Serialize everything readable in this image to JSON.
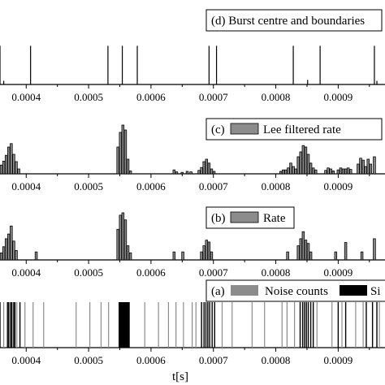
{
  "x_axis": {
    "label": "t[s]",
    "range": [
      0.000358,
      0.000975
    ],
    "ticks": [
      "0.0004",
      "0.0005",
      "0.0006",
      "0.0007",
      "0.0008",
      "0.0009"
    ],
    "tick_values": [
      0.0004,
      0.0005,
      0.0006,
      0.0007,
      0.0008,
      0.0009
    ]
  },
  "panels": [
    {
      "id": "d",
      "legend_label": "(d) Burst centre and boundaries",
      "type": "stem",
      "y_max": 1,
      "points": [
        {
          "t": 0.000358,
          "v": 0.85
        },
        {
          "t": 0.000364,
          "v": 0.08
        },
        {
          "t": 0.000407,
          "v": 0.85
        },
        {
          "t": 0.000531,
          "v": 0.85
        },
        {
          "t": 0.000554,
          "v": 0.85
        },
        {
          "t": 0.000578,
          "v": 0.85
        },
        {
          "t": 0.000693,
          "v": 0.85
        },
        {
          "t": 0.000705,
          "v": 0.85
        },
        {
          "t": 0.000828,
          "v": 0.85
        },
        {
          "t": 0.000851,
          "v": 0.1
        },
        {
          "t": 0.000871,
          "v": 0.85
        },
        {
          "t": 0.000958,
          "v": 0.85
        },
        {
          "t": 0.000962,
          "v": 0.08
        }
      ]
    },
    {
      "id": "c",
      "legend_label": "(c) Lee filtered rate",
      "type": "bar",
      "y_max": 1,
      "bar_width": 3.5e-06,
      "points": [
        {
          "t": 0.00036,
          "v": 0.18
        },
        {
          "t": 0.000364,
          "v": 0.26
        },
        {
          "t": 0.000368,
          "v": 0.38
        },
        {
          "t": 0.000372,
          "v": 0.55
        },
        {
          "t": 0.000376,
          "v": 0.62
        },
        {
          "t": 0.00038,
          "v": 0.4
        },
        {
          "t": 0.000384,
          "v": 0.25
        },
        {
          "t": 0.000388,
          "v": 0.1
        },
        {
          "t": 0.000547,
          "v": 0.55
        },
        {
          "t": 0.000551,
          "v": 0.85
        },
        {
          "t": 0.000555,
          "v": 1.0
        },
        {
          "t": 0.000559,
          "v": 0.9
        },
        {
          "t": 0.000563,
          "v": 0.3
        },
        {
          "t": 0.000567,
          "v": 0.06
        },
        {
          "t": 0.000637,
          "v": 0.08
        },
        {
          "t": 0.000641,
          "v": 0.04
        },
        {
          "t": 0.00065,
          "v": 0.03
        },
        {
          "t": 0.000658,
          "v": 0.05
        },
        {
          "t": 0.000664,
          "v": 0.04
        },
        {
          "t": 0.000677,
          "v": 0.07
        },
        {
          "t": 0.000681,
          "v": 0.13
        },
        {
          "t": 0.000685,
          "v": 0.25
        },
        {
          "t": 0.000689,
          "v": 0.3
        },
        {
          "t": 0.000693,
          "v": 0.22
        },
        {
          "t": 0.000697,
          "v": 0.1
        },
        {
          "t": 0.000701,
          "v": 0.05
        },
        {
          "t": 0.000808,
          "v": 0.05
        },
        {
          "t": 0.000812,
          "v": 0.08
        },
        {
          "t": 0.000816,
          "v": 0.08
        },
        {
          "t": 0.00082,
          "v": 0.12
        },
        {
          "t": 0.000824,
          "v": 0.22
        },
        {
          "t": 0.000828,
          "v": 0.15
        },
        {
          "t": 0.000832,
          "v": 0.1
        },
        {
          "t": 0.000836,
          "v": 0.35
        },
        {
          "t": 0.00084,
          "v": 0.45
        },
        {
          "t": 0.000844,
          "v": 0.58
        },
        {
          "t": 0.000848,
          "v": 0.55
        },
        {
          "t": 0.000852,
          "v": 0.4
        },
        {
          "t": 0.000856,
          "v": 0.22
        },
        {
          "t": 0.00086,
          "v": 0.12
        },
        {
          "t": 0.000864,
          "v": 0.08
        },
        {
          "t": 0.00088,
          "v": 0.07
        },
        {
          "t": 0.000884,
          "v": 0.12
        },
        {
          "t": 0.000888,
          "v": 0.1
        },
        {
          "t": 0.000892,
          "v": 0.06
        },
        {
          "t": 0.0009,
          "v": 0.08
        },
        {
          "t": 0.000904,
          "v": 0.12
        },
        {
          "t": 0.000908,
          "v": 0.1
        },
        {
          "t": 0.000912,
          "v": 0.1
        },
        {
          "t": 0.000916,
          "v": 0.12
        },
        {
          "t": 0.00092,
          "v": 0.09
        },
        {
          "t": 0.000932,
          "v": 0.2
        },
        {
          "t": 0.000936,
          "v": 0.32
        },
        {
          "t": 0.00094,
          "v": 0.28
        },
        {
          "t": 0.000944,
          "v": 0.15
        },
        {
          "t": 0.000948,
          "v": 0.3
        },
        {
          "t": 0.000952,
          "v": 0.2
        },
        {
          "t": 0.000958,
          "v": 0.35
        }
      ]
    },
    {
      "id": "b",
      "legend_label": "(b) Rate",
      "type": "bar",
      "y_max": 1,
      "bar_width": 3.5e-06,
      "points": [
        {
          "t": 0.00036,
          "v": 0.15
        },
        {
          "t": 0.000364,
          "v": 0.28
        },
        {
          "t": 0.000368,
          "v": 0.45
        },
        {
          "t": 0.000372,
          "v": 0.55
        },
        {
          "t": 0.000376,
          "v": 0.72
        },
        {
          "t": 0.00038,
          "v": 0.4
        },
        {
          "t": 0.000384,
          "v": 0.2
        },
        {
          "t": 0.000416,
          "v": 0.17
        },
        {
          "t": 0.000547,
          "v": 0.65
        },
        {
          "t": 0.000551,
          "v": 0.95
        },
        {
          "t": 0.000555,
          "v": 1.0
        },
        {
          "t": 0.000559,
          "v": 0.85
        },
        {
          "t": 0.000563,
          "v": 0.3
        },
        {
          "t": 0.000567,
          "v": 0.15
        },
        {
          "t": 0.000637,
          "v": 0.17
        },
        {
          "t": 0.000651,
          "v": 0.17
        },
        {
          "t": 0.000681,
          "v": 0.17
        },
        {
          "t": 0.000685,
          "v": 0.3
        },
        {
          "t": 0.000689,
          "v": 0.42
        },
        {
          "t": 0.000693,
          "v": 0.38
        },
        {
          "t": 0.000697,
          "v": 0.17
        },
        {
          "t": 0.000819,
          "v": 0.17
        },
        {
          "t": 0.000836,
          "v": 0.3
        },
        {
          "t": 0.00084,
          "v": 0.45
        },
        {
          "t": 0.000844,
          "v": 0.6
        },
        {
          "t": 0.000848,
          "v": 0.42
        },
        {
          "t": 0.000852,
          "v": 0.35
        },
        {
          "t": 0.000856,
          "v": 0.17
        },
        {
          "t": 0.000896,
          "v": 0.17
        },
        {
          "t": 0.000912,
          "v": 0.37
        },
        {
          "t": 0.000938,
          "v": 0.17
        },
        {
          "t": 0.000958,
          "v": 0.45
        }
      ]
    },
    {
      "id": "a",
      "legend_label": "(a)",
      "legend_series": [
        {
          "name": "Noise counts",
          "color": "#8c8c8c"
        },
        {
          "name": "Si",
          "color": "#000000"
        }
      ],
      "type": "event",
      "noise_times": [
        0.000364,
        0.000385,
        0.000398,
        0.000411,
        0.000428,
        0.00048,
        0.000502,
        0.00052,
        0.000532,
        0.00059,
        0.000612,
        0.000628,
        0.00064,
        0.000652,
        0.000666,
        0.000672,
        0.000714,
        0.00073,
        0.000762,
        0.000782,
        0.00081,
        0.000818,
        0.00083,
        0.000866,
        0.00089,
        0.000906,
        0.000928,
        0.00094,
        0.000966
      ],
      "signal_times": [
        0.000358,
        0.00037,
        0.000372,
        0.000375,
        0.000377,
        0.00038,
        0.000382,
        0.00039,
        0.000549,
        0.00055,
        0.000551,
        0.000552,
        0.000553,
        0.000554,
        0.000555,
        0.000556,
        0.000557,
        0.000558,
        0.000559,
        0.00056,
        0.000561,
        0.000562,
        0.000563,
        0.000564,
        0.000565,
        0.000681,
        0.000685,
        0.000688,
        0.000691,
        0.000694,
        0.000698,
        0.000702,
        0.000839,
        0.000843,
        0.000846,
        0.000849,
        0.000852,
        0.000856,
        0.00086,
        0.0009,
        0.000912,
        0.000945,
        0.000955,
        0.000962
      ]
    }
  ],
  "colors": {
    "bar_fill": "#8c8c8c",
    "bar_stroke": "#000000",
    "noise": "#8c8c8c",
    "signal": "#000000"
  }
}
